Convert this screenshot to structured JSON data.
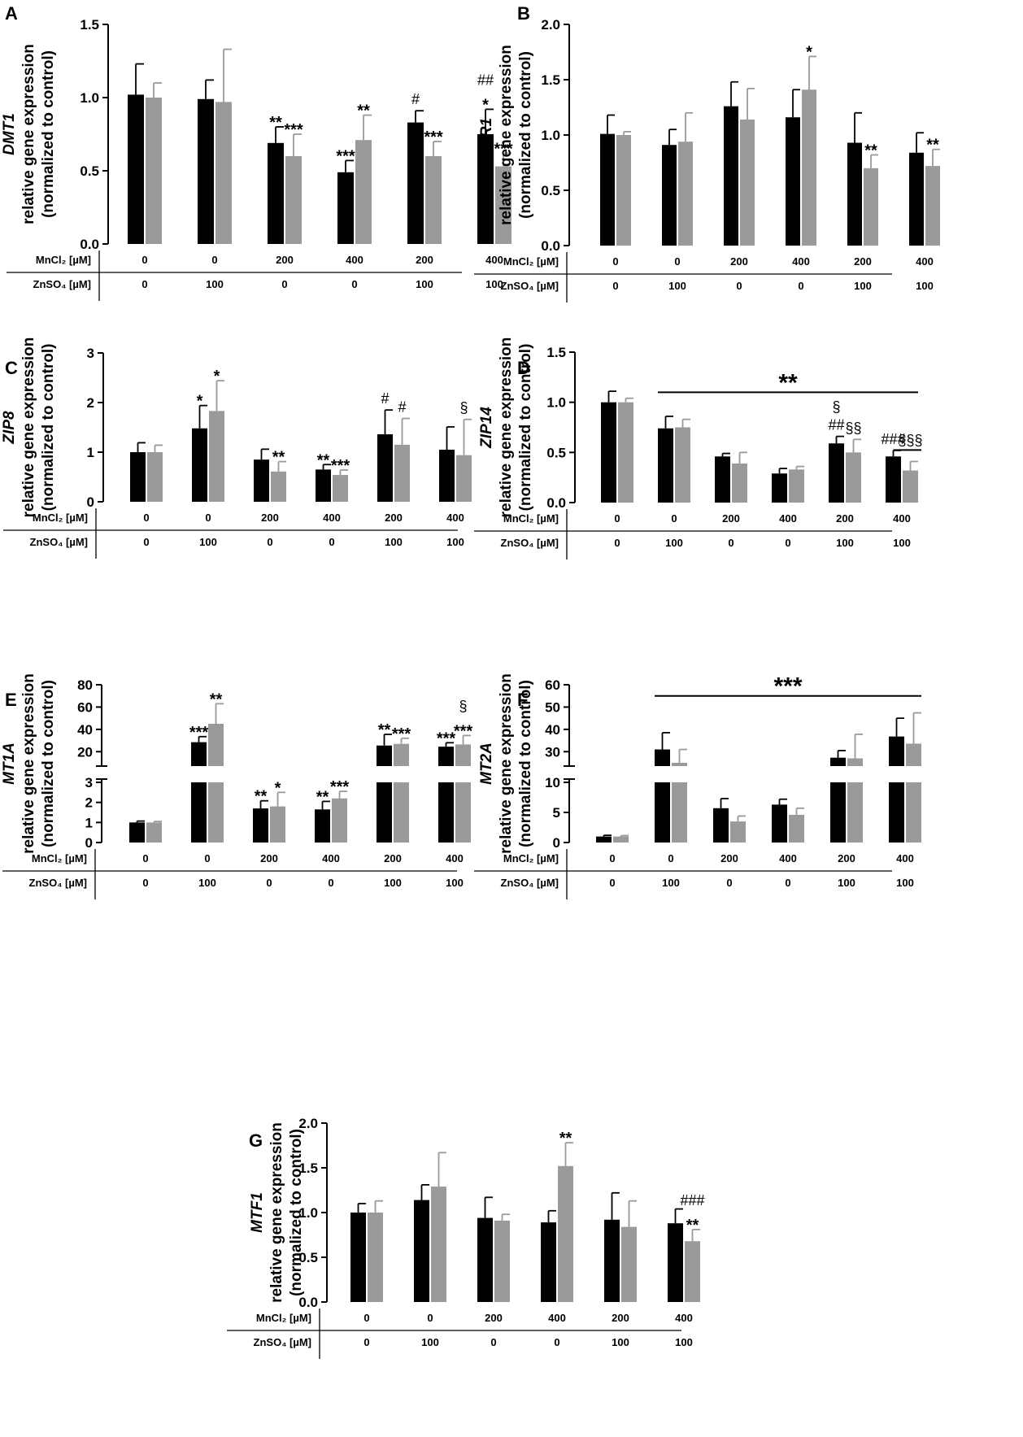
{
  "colors": {
    "series_black": "#000000",
    "series_gray": "#9a9a9a",
    "axis": "#000000"
  },
  "table_rows": [
    "MnCl₂ [µM]",
    "ZnSO₄ [µM]"
  ],
  "mncl2": [
    "0",
    "0",
    "200",
    "400",
    "200",
    "400"
  ],
  "znso4": [
    "0",
    "100",
    "0",
    "0",
    "100",
    "100"
  ],
  "chart_data": [
    {
      "panel": "A",
      "type": "bar",
      "gene": "DMT1",
      "ylabel": [
        "relative gene expression",
        "(normalized to control)"
      ],
      "ylim": [
        0,
        1.5
      ],
      "yticks": [
        "0.0",
        "0.5",
        "1.0",
        "1.5"
      ],
      "categories": [
        "0 / 0",
        "0 / 100",
        "200 / 0",
        "400 / 0",
        "200 / 100",
        "400 / 100"
      ],
      "series": [
        {
          "color": "black",
          "values": [
            1.02,
            0.99,
            0.69,
            0.49,
            0.83,
            0.75
          ],
          "errors": [
            0.21,
            0.13,
            0.11,
            0.08,
            0.08,
            0.17
          ]
        },
        {
          "color": "gray",
          "values": [
            1.0,
            0.97,
            0.6,
            0.71,
            0.6,
            0.53
          ],
          "errors": [
            0.1,
            0.36,
            0.15,
            0.17,
            0.1,
            0.09
          ]
        }
      ],
      "annotations": [
        {
          "cat": 2,
          "s": 0,
          "lines": [
            "**"
          ]
        },
        {
          "cat": 2,
          "s": 1,
          "lines": [
            "***"
          ]
        },
        {
          "cat": 3,
          "s": 0,
          "lines": [
            "***"
          ]
        },
        {
          "cat": 3,
          "s": 1,
          "lines": [
            "**"
          ]
        },
        {
          "cat": 4,
          "s": 0,
          "lines": [
            "#"
          ]
        },
        {
          "cat": 4,
          "s": 1,
          "lines": [
            "***"
          ]
        },
        {
          "cat": 5,
          "s": 0,
          "lines": [
            "##",
            "*"
          ]
        },
        {
          "cat": 5,
          "s": 1,
          "lines": [
            "***"
          ]
        }
      ]
    },
    {
      "panel": "B",
      "type": "bar",
      "gene": "TfR1",
      "ylabel": [
        "relative gene expression",
        "(normalized to control)"
      ],
      "ylim": [
        0,
        2.0
      ],
      "yticks": [
        "0.0",
        "0.5",
        "1.0",
        "1.5",
        "2.0"
      ],
      "categories": [
        "0 / 0",
        "0 / 100",
        "200 / 0",
        "400 / 0",
        "200 / 100",
        "400 / 100"
      ],
      "series": [
        {
          "color": "black",
          "values": [
            1.01,
            0.91,
            1.26,
            1.16,
            0.93,
            0.84
          ],
          "errors": [
            0.17,
            0.14,
            0.22,
            0.25,
            0.27,
            0.18
          ]
        },
        {
          "color": "gray",
          "values": [
            1.0,
            0.94,
            1.14,
            1.41,
            0.7,
            0.72
          ],
          "errors": [
            0.03,
            0.26,
            0.28,
            0.3,
            0.12,
            0.15
          ]
        }
      ],
      "annotations": [
        {
          "cat": 3,
          "s": 1,
          "lines": [
            "*"
          ]
        },
        {
          "cat": 4,
          "s": 1,
          "lines": [
            "**"
          ]
        },
        {
          "cat": 5,
          "s": 1,
          "lines": [
            "**"
          ]
        }
      ]
    },
    {
      "panel": "C",
      "type": "bar",
      "gene": "ZIP8",
      "ylabel": [
        "relative gene expression",
        "(normalized to control)"
      ],
      "ylim": [
        0,
        3
      ],
      "yticks": [
        "0",
        "1",
        "2",
        "3"
      ],
      "categories": [
        "0 / 0",
        "0 / 100",
        "200 / 0",
        "400 / 0",
        "200 / 100",
        "400 / 100"
      ],
      "series": [
        {
          "color": "black",
          "values": [
            1.0,
            1.48,
            0.85,
            0.65,
            1.36,
            1.05
          ],
          "errors": [
            0.19,
            0.46,
            0.21,
            0.1,
            0.49,
            0.46
          ]
        },
        {
          "color": "gray",
          "values": [
            1.0,
            1.83,
            0.61,
            0.54,
            1.15,
            0.94
          ],
          "errors": [
            0.14,
            0.61,
            0.2,
            0.1,
            0.53,
            0.72
          ]
        }
      ],
      "annotations": [
        {
          "cat": 1,
          "s": 0,
          "lines": [
            "*"
          ]
        },
        {
          "cat": 1,
          "s": 1,
          "lines": [
            "*"
          ]
        },
        {
          "cat": 2,
          "s": 1,
          "lines": [
            "**"
          ]
        },
        {
          "cat": 3,
          "s": 0,
          "lines": [
            "**"
          ]
        },
        {
          "cat": 3,
          "s": 1,
          "lines": [
            "***"
          ]
        },
        {
          "cat": 4,
          "s": 0,
          "lines": [
            "#"
          ]
        },
        {
          "cat": 4,
          "s": 1,
          "lines": [
            "#"
          ]
        },
        {
          "cat": 5,
          "s": 1,
          "lines": [
            "§"
          ]
        }
      ]
    },
    {
      "panel": "D",
      "type": "bar",
      "gene": "ZIP14",
      "ylabel": [
        "relative gene expression",
        "(normalized to control)"
      ],
      "ylim": [
        0,
        1.5
      ],
      "yticks": [
        "0.0",
        "0.5",
        "1.0",
        "1.5"
      ],
      "categories": [
        "0 / 0",
        "0 / 100",
        "200 / 0",
        "400 / 0",
        "200 / 100",
        "400 / 100"
      ],
      "series": [
        {
          "color": "black",
          "values": [
            1.0,
            0.74,
            0.46,
            0.29,
            0.59,
            0.46
          ],
          "errors": [
            0.11,
            0.12,
            0.03,
            0.05,
            0.07,
            0.06
          ]
        },
        {
          "color": "gray",
          "values": [
            1.0,
            0.75,
            0.39,
            0.33,
            0.5,
            0.32
          ],
          "errors": [
            0.04,
            0.08,
            0.11,
            0.03,
            0.13,
            0.09
          ]
        }
      ],
      "bracket": {
        "from_cat": 1,
        "to_cat": 5,
        "y": 1.1,
        "label": "**"
      },
      "annotations": [
        {
          "cat": 4,
          "s": 0,
          "lines": [
            "§",
            "##"
          ]
        },
        {
          "cat": 4,
          "s": 1,
          "lines": [
            "§§"
          ]
        },
        {
          "cat": 5,
          "s": 0,
          "lines": [
            "###"
          ]
        },
        {
          "cat": 5,
          "s": 1,
          "lines": [
            "§§§"
          ],
          "underline": true
        }
      ]
    },
    {
      "panel": "E",
      "type": "bar",
      "gene": "MT1A",
      "broken_axis": true,
      "ylabel": [
        "relative gene expression",
        "(normalized to control)"
      ],
      "lower_ylim": [
        0,
        3
      ],
      "lower_yticks": [
        "0",
        "1",
        "2",
        "3"
      ],
      "upper_ylim": [
        10,
        80
      ],
      "upper_yticks": [
        "20",
        "40",
        "60",
        "80"
      ],
      "categories": [
        "0 / 0",
        "0 / 100",
        "200 / 0",
        "400 / 0",
        "200 / 100",
        "400 / 100"
      ],
      "series": [
        {
          "color": "black",
          "values": [
            1.0,
            28.5,
            1.7,
            1.65,
            25.5,
            24.5
          ],
          "errors": [
            0.07,
            5.0,
            0.38,
            0.4,
            10.0,
            3.5
          ]
        },
        {
          "color": "gray",
          "values": [
            1.0,
            45.0,
            1.8,
            2.2,
            27.0,
            26.5
          ],
          "errors": [
            0.05,
            18.0,
            0.7,
            0.35,
            5.0,
            8.0
          ]
        }
      ],
      "annotations": [
        {
          "cat": 1,
          "s": 0,
          "lines": [
            "***"
          ]
        },
        {
          "cat": 1,
          "s": 1,
          "lines": [
            "**"
          ]
        },
        {
          "cat": 2,
          "s": 0,
          "lines": [
            "**"
          ]
        },
        {
          "cat": 2,
          "s": 1,
          "lines": [
            "*"
          ]
        },
        {
          "cat": 3,
          "s": 0,
          "lines": [
            "**"
          ]
        },
        {
          "cat": 3,
          "s": 1,
          "lines": [
            "***"
          ]
        },
        {
          "cat": 4,
          "s": 0,
          "lines": [
            "**"
          ]
        },
        {
          "cat": 4,
          "s": 1,
          "lines": [
            "***"
          ]
        },
        {
          "cat": 5,
          "s": 0,
          "lines": [
            "***"
          ]
        },
        {
          "cat": 5,
          "s": 1,
          "lines": [
            "§",
            "***"
          ]
        }
      ]
    },
    {
      "panel": "F",
      "type": "bar",
      "gene": "MT2A",
      "broken_axis": true,
      "ylabel": [
        "relative gene expression",
        "(normalized to control)"
      ],
      "lower_ylim": [
        0,
        10
      ],
      "lower_yticks": [
        "0",
        "5",
        "10"
      ],
      "upper_ylim": [
        25,
        60
      ],
      "upper_yticks": [
        "30",
        "40",
        "50",
        "60"
      ],
      "categories": [
        "0 / 0",
        "0 / 100",
        "200 / 0",
        "400 / 0",
        "200 / 100",
        "400 / 100"
      ],
      "series": [
        {
          "color": "black",
          "values": [
            1.0,
            31.0,
            5.7,
            6.3,
            27.3,
            36.8
          ],
          "errors": [
            0.2,
            7.5,
            1.6,
            0.9,
            3.2,
            8.2
          ]
        },
        {
          "color": "gray",
          "values": [
            1.0,
            25.0,
            3.5,
            4.6,
            27.0,
            33.6
          ],
          "errors": [
            0.15,
            6.0,
            0.9,
            1.1,
            10.8,
            13.8
          ]
        }
      ],
      "bracket": {
        "from_cat": 1,
        "to_cat": 5,
        "y": 55,
        "label": "***"
      },
      "annotations": []
    },
    {
      "panel": "G",
      "type": "bar",
      "gene": "MTF1",
      "ylabel": [
        "relative gene expression",
        "(normalized to control)"
      ],
      "ylim": [
        0,
        2.0
      ],
      "yticks": [
        "0.0",
        "0.5",
        "1.0",
        "1.5",
        "2.0"
      ],
      "categories": [
        "0 / 0",
        "0 / 100",
        "200 / 0",
        "400 / 0",
        "200 / 100",
        "400 / 100"
      ],
      "series": [
        {
          "color": "black",
          "values": [
            1.0,
            1.14,
            0.94,
            0.89,
            0.92,
            0.88
          ],
          "errors": [
            0.1,
            0.17,
            0.23,
            0.13,
            0.3,
            0.16
          ]
        },
        {
          "color": "gray",
          "values": [
            1.0,
            1.29,
            0.91,
            1.52,
            0.84,
            0.68
          ],
          "errors": [
            0.13,
            0.38,
            0.07,
            0.26,
            0.29,
            0.13
          ]
        }
      ],
      "annotations": [
        {
          "cat": 3,
          "s": 1,
          "lines": [
            "**"
          ]
        },
        {
          "cat": 5,
          "s": 1,
          "lines": [
            "###",
            "**"
          ]
        }
      ]
    }
  ]
}
